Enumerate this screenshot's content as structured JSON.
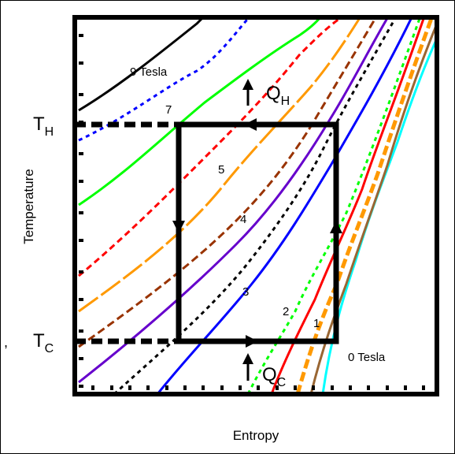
{
  "axes": {
    "xlabel": "Entropy",
    "ylabel": "Temperature",
    "th_label": {
      "main": "T",
      "sub": "H"
    },
    "tc_label": {
      "main": "T",
      "sub": "C"
    }
  },
  "heat_labels": {
    "qh": {
      "main": "Q",
      "sub": "H"
    },
    "qc": {
      "main": "Q",
      "sub": "C"
    }
  },
  "field_labels": {
    "max": "9 Tesla",
    "zero": "0 Tesla",
    "inline": [
      "7",
      "5",
      "4",
      "3",
      "2",
      "1"
    ]
  },
  "punctuation": ",",
  "colors": {
    "ink": "#000000",
    "curves": [
      "#00ffff",
      "#996633",
      "#ff9900",
      "#ff0000",
      "#00ff00",
      "#0000ff",
      "#000000",
      "#6600cc",
      "#993300",
      "#ff9900",
      "#ff0000",
      "#00ff00",
      "#0000ff",
      "#000000"
    ]
  }
}
